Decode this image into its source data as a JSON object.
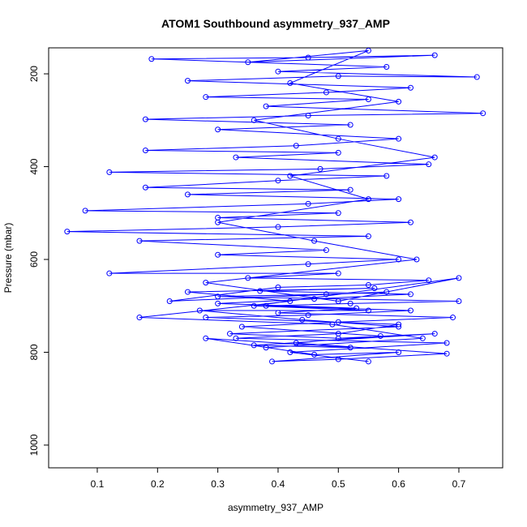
{
  "chart_data": {
    "type": "line",
    "title": "ATOM1 Southbound asymmetry_937_AMP",
    "x_label": "asymmetry_937_AMP",
    "y_label": "Pressure (mbar)",
    "xlim": [
      0.0193,
      0.7727
    ],
    "ylim": [
      1049,
      144
    ],
    "xticks": [
      0.1,
      0.2,
      0.3,
      0.4,
      0.5,
      0.6,
      0.7
    ],
    "yticks": [
      200,
      400,
      600,
      800,
      1000
    ],
    "series": [
      {
        "color": "#0000ff",
        "x": [
          0.55,
          0.42,
          0.68,
          0.33,
          0.5,
          0.6,
          0.28,
          0.45,
          0.62,
          0.38,
          0.52,
          0.7,
          0.3,
          0.48,
          0.58,
          0.22,
          0.4,
          0.55,
          0.65,
          0.35,
          0.5,
          0.12,
          0.45,
          0.6,
          0.3,
          0.48,
          0.17,
          0.55,
          0.05,
          0.4,
          0.62,
          0.3,
          0.5,
          0.08,
          0.45,
          0.6,
          0.25,
          0.52,
          0.18,
          0.4,
          0.58,
          0.12,
          0.47,
          0.65,
          0.33,
          0.5,
          0.18,
          0.43,
          0.6,
          0.3,
          0.52,
          0.18,
          0.45,
          0.74,
          0.38,
          0.55,
          0.28,
          0.48,
          0.62,
          0.25,
          0.5,
          0.73,
          0.4,
          0.58,
          0.19,
          0.45,
          0.66,
          0.35,
          0.55,
          0.42,
          0.6,
          0.36,
          0.5,
          0.66,
          0.42,
          0.55,
          0.3,
          0.46,
          0.63,
          0.28,
          0.5,
          0.7,
          0.36,
          0.55,
          0.27,
          0.44,
          0.6,
          0.32,
          0.5,
          0.66,
          0.36,
          0.52,
          0.28,
          0.46,
          0.6,
          0.39,
          0.5,
          0.68,
          0.43,
          0.57,
          0.34,
          0.5,
          0.69,
          0.4,
          0.53,
          0.3,
          0.46,
          0.62,
          0.37,
          0.56,
          0.25,
          0.42,
          0.17,
          0.49,
          0.64,
          0.38
        ],
        "values": [
          820,
          800,
          780,
          770,
          760,
          740,
          725,
          720,
          710,
          700,
          695,
          690,
          680,
          675,
          670,
          690,
          660,
          655,
          645,
          640,
          630,
          630,
          610,
          600,
          590,
          580,
          560,
          550,
          540,
          530,
          520,
          510,
          500,
          495,
          480,
          470,
          460,
          450,
          445,
          430,
          420,
          412,
          405,
          395,
          380,
          370,
          365,
          355,
          340,
          320,
          310,
          298,
          290,
          285,
          270,
          255,
          250,
          240,
          230,
          215,
          205,
          207,
          195,
          185,
          168,
          165,
          160,
          175,
          150,
          220,
          260,
          300,
          340,
          380,
          420,
          470,
          520,
          560,
          600,
          650,
          690,
          640,
          700,
          710,
          710,
          730,
          745,
          760,
          770,
          760,
          785,
          790,
          770,
          805,
          800,
          820,
          815,
          803,
          780,
          765,
          745,
          735,
          725,
          715,
          705,
          695,
          685,
          675,
          668,
          662,
          670,
          690,
          725,
          740,
          770,
          790
        ]
      }
    ]
  }
}
